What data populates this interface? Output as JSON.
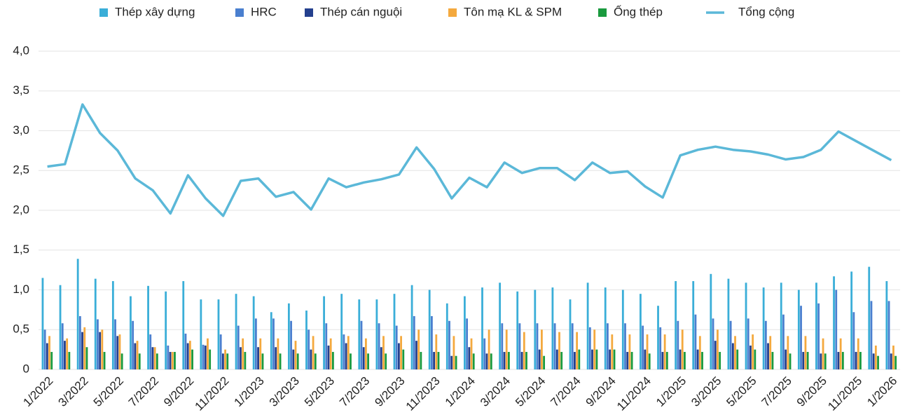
{
  "chart_data": {
    "type": "bar_line",
    "categories": [
      "1/2022",
      null,
      "3/2022",
      null,
      "5/2022",
      null,
      "7/2022",
      null,
      "9/2022",
      null,
      "11/2022",
      null,
      "1/2023",
      null,
      "3/2023",
      null,
      "5/2023",
      null,
      "7/2023",
      null,
      "9/2023",
      null,
      "11/2023",
      null,
      "1/2024",
      null,
      "3/2024",
      null,
      "5/2024",
      null,
      "7/2024",
      null,
      "9/2024",
      null,
      "11/2024",
      null,
      "1/2025",
      null,
      "3/2025",
      null,
      "5/2025",
      null,
      "7/2025",
      null,
      "9/2025",
      null,
      "11/2025",
      null,
      "1/2026"
    ],
    "series": [
      {
        "name": "Thép xây dựng",
        "type": "bar",
        "color": "#3aaed8",
        "values": [
          1.15,
          1.06,
          1.39,
          1.14,
          1.11,
          0.92,
          1.05,
          0.98,
          1.11,
          0.88,
          0.88,
          0.95,
          0.92,
          0.72,
          0.83,
          0.74,
          0.92,
          0.95,
          0.88,
          0.88,
          0.95,
          1.06,
          1.0,
          0.83,
          0.92,
          1.03,
          1.09,
          0.98,
          1.0,
          1.03,
          0.88,
          1.09,
          1.03,
          1.0,
          0.95,
          0.8,
          1.11,
          1.11,
          1.2,
          1.14,
          1.09,
          1.03,
          1.09,
          1.0,
          1.09,
          1.17,
          1.23,
          1.29,
          1.11
        ]
      },
      {
        "name": "HRC",
        "type": "bar",
        "color": "#4a7fcf",
        "values": [
          0.5,
          0.58,
          0.67,
          0.63,
          0.63,
          0.61,
          0.44,
          0.3,
          0.45,
          0.31,
          0.44,
          0.55,
          0.64,
          0.64,
          0.61,
          0.5,
          0.58,
          0.44,
          0.61,
          0.58,
          0.55,
          0.67,
          0.67,
          0.61,
          0.64,
          0.39,
          0.58,
          0.58,
          0.58,
          0.58,
          0.58,
          0.53,
          0.58,
          0.58,
          0.55,
          0.53,
          0.61,
          0.69,
          0.64,
          0.61,
          0.64,
          0.61,
          0.69,
          0.8,
          0.83,
          1.0,
          0.72,
          0.86,
          0.86
        ]
      },
      {
        "name": "Thép cán nguội",
        "type": "bar",
        "color": "#24408e",
        "values": [
          0.33,
          0.36,
          0.47,
          0.47,
          0.42,
          0.33,
          0.28,
          0.22,
          0.33,
          0.3,
          0.2,
          0.28,
          0.28,
          0.28,
          0.25,
          0.25,
          0.3,
          0.33,
          0.28,
          0.28,
          0.33,
          0.36,
          0.22,
          0.17,
          0.28,
          0.2,
          0.22,
          0.22,
          0.25,
          0.25,
          0.22,
          0.25,
          0.25,
          0.22,
          0.25,
          0.22,
          0.25,
          0.25,
          0.36,
          0.33,
          0.3,
          0.33,
          0.25,
          0.22,
          0.2,
          0.22,
          0.22,
          0.2,
          0.2
        ]
      },
      {
        "name": "Tôn mạ KL & SPM",
        "type": "bar",
        "color": "#f4a93e",
        "values": [
          0.42,
          0.39,
          0.53,
          0.5,
          0.44,
          0.36,
          0.28,
          0.22,
          0.36,
          0.39,
          0.25,
          0.39,
          0.39,
          0.39,
          0.36,
          0.42,
          0.39,
          0.42,
          0.39,
          0.42,
          0.42,
          0.5,
          0.44,
          0.42,
          0.39,
          0.5,
          0.5,
          0.47,
          0.5,
          0.47,
          0.47,
          0.5,
          0.44,
          0.44,
          0.44,
          0.44,
          0.5,
          0.42,
          0.5,
          0.42,
          0.44,
          0.42,
          0.42,
          0.42,
          0.39,
          0.39,
          0.39,
          0.3,
          0.3
        ]
      },
      {
        "name": "Ống thép",
        "type": "bar",
        "color": "#1a9a3e",
        "values": [
          0.22,
          0.22,
          0.28,
          0.22,
          0.2,
          0.2,
          0.2,
          0.22,
          0.25,
          0.25,
          0.2,
          0.22,
          0.2,
          0.2,
          0.2,
          0.2,
          0.22,
          0.2,
          0.2,
          0.2,
          0.25,
          0.22,
          0.22,
          0.17,
          0.2,
          0.2,
          0.22,
          0.22,
          0.17,
          0.22,
          0.25,
          0.25,
          0.25,
          0.22,
          0.2,
          0.22,
          0.22,
          0.22,
          0.22,
          0.25,
          0.25,
          0.22,
          0.2,
          0.22,
          0.2,
          0.22,
          0.22,
          0.17,
          0.17
        ]
      },
      {
        "name": "Tổng cộng",
        "type": "line",
        "color": "#5bb8d8",
        "values": [
          2.55,
          2.58,
          3.33,
          2.97,
          2.75,
          2.4,
          2.25,
          1.96,
          2.44,
          2.15,
          1.93,
          2.37,
          2.4,
          2.17,
          2.23,
          2.01,
          2.4,
          2.29,
          2.35,
          2.39,
          2.45,
          2.79,
          2.52,
          2.15,
          2.41,
          2.29,
          2.6,
          2.47,
          2.53,
          2.53,
          2.38,
          2.6,
          2.47,
          2.49,
          2.3,
          2.16,
          2.69,
          2.76,
          2.8,
          2.76,
          2.74,
          2.7,
          2.64,
          2.67,
          2.76,
          2.99,
          2.87,
          2.75,
          2.63
        ]
      }
    ],
    "ylim": [
      0,
      4
    ],
    "yticks": [
      0,
      {
        "value": 0.5,
        "label": "0,5"
      },
      {
        "value": 1,
        "label": "1,0"
      },
      {
        "value": 1.5,
        "label": "1,5"
      },
      {
        "value": 2,
        "label": "2,0"
      },
      {
        "value": 2.5,
        "label": "2,5"
      },
      {
        "value": 3,
        "label": "3,0"
      },
      {
        "value": 3.5,
        "label": "3,5"
      },
      {
        "value": 4,
        "label": "4,0"
      }
    ],
    "grid": true,
    "legend": "top"
  }
}
